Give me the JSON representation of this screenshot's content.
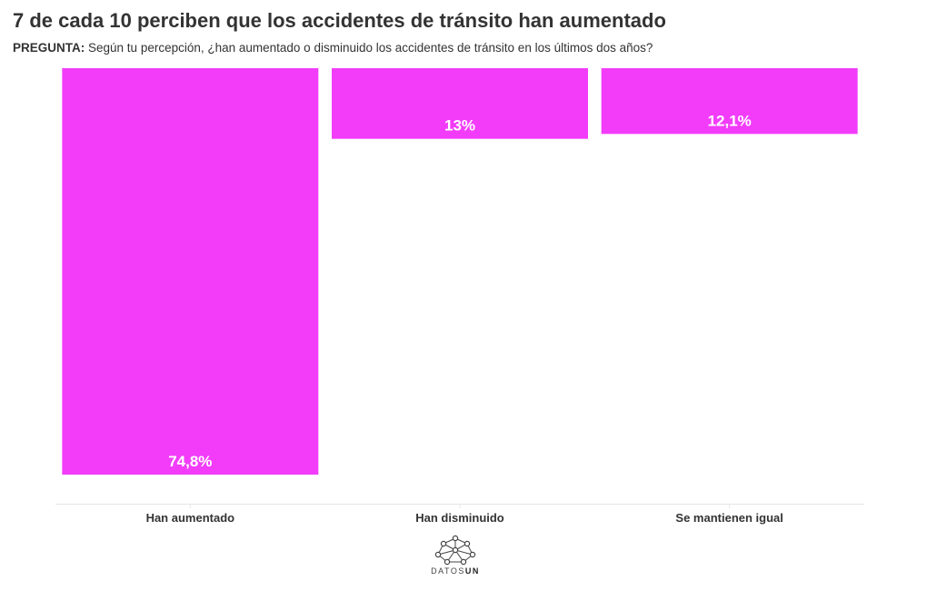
{
  "chart_data": {
    "type": "bar",
    "title": "7 de cada 10 perciben que los accidentes de tránsito han aumentado",
    "subtitle_label": "PREGUNTA:",
    "subtitle_text": "Según tu percepción, ¿han aumentado o disminuido los accidentes de tránsito en los últimos dos años?",
    "categories": [
      "Han aumentado",
      "Han disminuido",
      "Se mantienen igual"
    ],
    "values": [
      74.8,
      13,
      12.1
    ],
    "value_labels": [
      "74,8%",
      "13%",
      "12,1%"
    ],
    "ylim": [
      0,
      74.8
    ],
    "orientation": "bars hang from top",
    "grid": false,
    "bar_color": "#f23cfa",
    "label_color": "#ffffff",
    "axis_line_color": "#e6e6e6"
  },
  "branding": {
    "logo_name": "datos-un-logo",
    "logo_text_light": "DATOS",
    "logo_text_bold": "UN"
  }
}
